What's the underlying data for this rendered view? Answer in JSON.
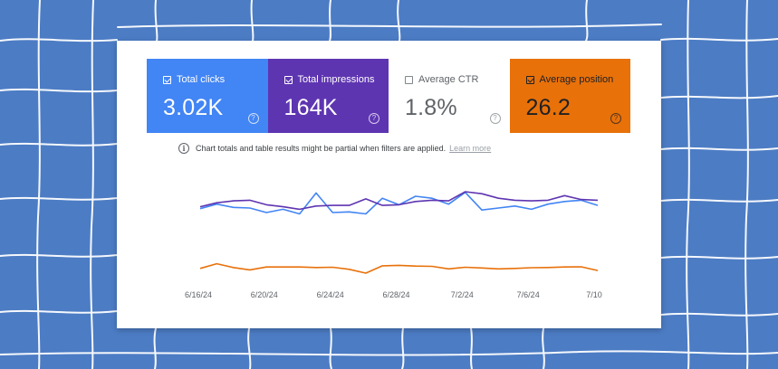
{
  "metrics": {
    "clicks": {
      "label": "Total clicks",
      "value": "3.02K",
      "checked": true,
      "color": "#4285f4"
    },
    "impressions": {
      "label": "Total impressions",
      "value": "164K",
      "checked": true,
      "color": "#5e35b1"
    },
    "ctr": {
      "label": "Average CTR",
      "value": "1.8%",
      "checked": false,
      "color": "#ffffff"
    },
    "position": {
      "label": "Average position",
      "value": "26.2",
      "checked": true,
      "color": "#e8710a"
    }
  },
  "icons": {
    "help": "help-icon",
    "info": "info-icon",
    "checkbox": "checkbox-icon"
  },
  "notice": {
    "text": "Chart totals and table results might be partial when filters are applied.",
    "link": "Learn more"
  },
  "chart_data": {
    "type": "line",
    "x_tick_labels": [
      "6/16/24",
      "6/20/24",
      "6/24/24",
      "6/28/24",
      "7/2/24",
      "7/6/24",
      "7/10"
    ],
    "grid": false,
    "legend": "none",
    "series": [
      {
        "name": "Total clicks",
        "color": "#4285f4",
        "values": [
          0.48,
          0.62,
          0.52,
          0.5,
          0.36,
          0.46,
          0.32,
          0.96,
          0.36,
          0.38,
          0.32,
          0.8,
          0.6,
          0.86,
          0.8,
          0.62,
          0.98,
          0.44,
          0.5,
          0.56,
          0.46,
          0.62,
          0.7,
          0.74,
          0.58
        ]
      },
      {
        "name": "Total impressions",
        "color": "#5e35b1",
        "values": [
          0.54,
          0.66,
          0.72,
          0.74,
          0.6,
          0.54,
          0.46,
          0.56,
          0.58,
          0.58,
          0.78,
          0.58,
          0.6,
          0.7,
          0.74,
          0.72,
          1.0,
          0.94,
          0.8,
          0.74,
          0.72,
          0.74,
          0.88,
          0.76,
          0.74
        ]
      },
      {
        "name": "Average position",
        "color": "#e8710a",
        "values": [
          0.4,
          0.8,
          0.48,
          0.28,
          0.52,
          0.52,
          0.52,
          0.48,
          0.5,
          0.32,
          0.0,
          0.62,
          0.66,
          0.6,
          0.58,
          0.36,
          0.5,
          0.44,
          0.36,
          0.4,
          0.46,
          0.48,
          0.52,
          0.54,
          0.22
        ]
      }
    ]
  }
}
